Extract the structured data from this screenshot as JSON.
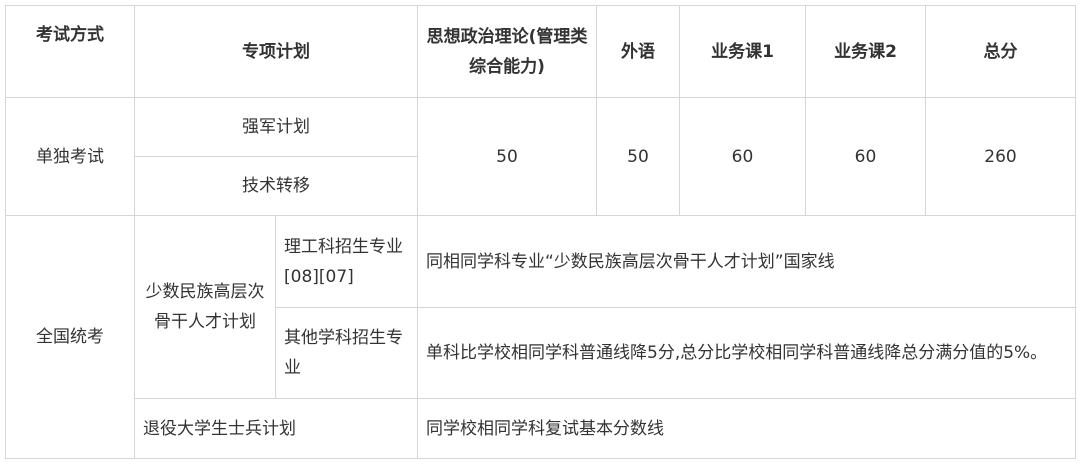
{
  "header": {
    "exam_mode": "考试方式",
    "special_plan": "专项计划",
    "politics": "思想政治理论(管理类综合能力)",
    "foreign_language": "外语",
    "course1": "业务课1",
    "course2": "业务课2",
    "total": "总分"
  },
  "separate_exam": {
    "mode": "单独考试",
    "plans": [
      "强军计划",
      "技术转移"
    ],
    "politics": "50",
    "foreign_language": "50",
    "course1": "60",
    "course2": "60",
    "total": "260"
  },
  "national_exam": {
    "mode": "全国统考",
    "minority_plan": "少数民族高层次骨干人才计划",
    "science_majors": "理工科招生专业[08][07]",
    "science_rule": "同相同学科专业“少数民族高层次骨干人才计划”国家线",
    "other_majors": "其他学科招生专业",
    "other_rule": "单科比学校相同学科普通线降5分,总分比学校相同学科普通线降总分满分值的5%。",
    "veteran_plan": "退役大学生士兵计划",
    "veteran_rule": "同学校相同学科复试基本分数线"
  }
}
